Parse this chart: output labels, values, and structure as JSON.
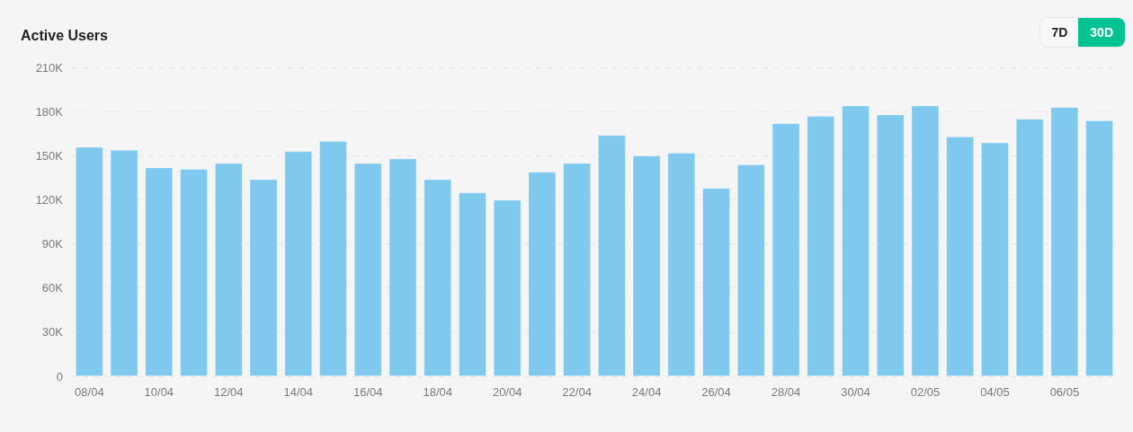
{
  "chart_data": {
    "type": "bar",
    "title": "Active Users",
    "categories": [
      "08/04",
      null,
      "10/04",
      null,
      "12/04",
      null,
      "14/04",
      null,
      "16/04",
      null,
      "18/04",
      null,
      "20/04",
      null,
      "22/04",
      null,
      "24/04",
      null,
      "26/04",
      null,
      "28/04",
      null,
      "30/04",
      null,
      "02/05",
      null,
      "04/05",
      null,
      "06/05",
      null
    ],
    "values": [
      156000,
      154000,
      142000,
      141000,
      145000,
      134000,
      153000,
      160000,
      145000,
      148000,
      134000,
      125000,
      120000,
      139000,
      145000,
      164000,
      150000,
      152000,
      128000,
      144000,
      172000,
      177000,
      184000,
      178000,
      184000,
      163000,
      159000,
      175000,
      183000,
      174000
    ],
    "color": "#7fc8ee",
    "ylim": [
      0,
      210000
    ],
    "yticks": [
      0,
      {
        "value": 30000,
        "label": "30K"
      },
      {
        "value": 60000,
        "label": "60K"
      },
      {
        "value": 90000,
        "label": "90K"
      },
      {
        "value": 120000,
        "label": "120K"
      },
      {
        "value": 150000,
        "label": "150K"
      },
      {
        "value": 180000,
        "label": "180K"
      },
      {
        "value": 210000,
        "label": "210K"
      }
    ],
    "grid": "y",
    "annotations": [
      "7D",
      "30D"
    ]
  }
}
